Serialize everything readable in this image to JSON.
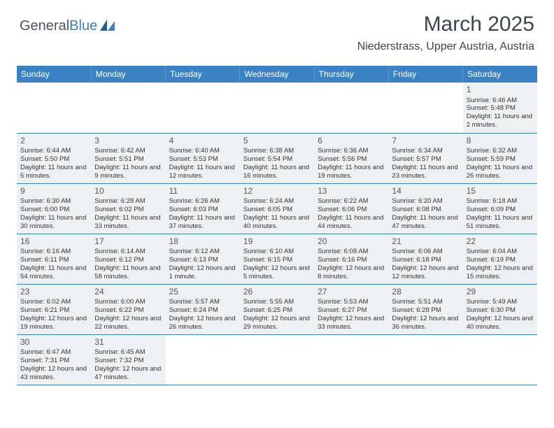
{
  "logo": {
    "textLeft": "General",
    "textRight": "Blue",
    "iconColor": "#3b82c4"
  },
  "title": "March 2025",
  "location": "Niederstrass, Upper Austria, Austria",
  "colors": {
    "headerBg": "#3b82c4",
    "cellBg": "#eef1f3",
    "borderColor": "#3b82c4",
    "textColor": "#333333"
  },
  "weekdays": [
    "Sunday",
    "Monday",
    "Tuesday",
    "Wednesday",
    "Thursday",
    "Friday",
    "Saturday"
  ],
  "weeks": [
    [
      null,
      null,
      null,
      null,
      null,
      null,
      {
        "n": "1",
        "sr": "Sunrise: 6:46 AM",
        "ss": "Sunset: 5:48 PM",
        "dl": "Daylight: 11 hours and 2 minutes."
      }
    ],
    [
      {
        "n": "2",
        "sr": "Sunrise: 6:44 AM",
        "ss": "Sunset: 5:50 PM",
        "dl": "Daylight: 11 hours and 5 minutes."
      },
      {
        "n": "3",
        "sr": "Sunrise: 6:42 AM",
        "ss": "Sunset: 5:51 PM",
        "dl": "Daylight: 11 hours and 9 minutes."
      },
      {
        "n": "4",
        "sr": "Sunrise: 6:40 AM",
        "ss": "Sunset: 5:53 PM",
        "dl": "Daylight: 11 hours and 12 minutes."
      },
      {
        "n": "5",
        "sr": "Sunrise: 6:38 AM",
        "ss": "Sunset: 5:54 PM",
        "dl": "Daylight: 11 hours and 16 minutes."
      },
      {
        "n": "6",
        "sr": "Sunrise: 6:36 AM",
        "ss": "Sunset: 5:56 PM",
        "dl": "Daylight: 11 hours and 19 minutes."
      },
      {
        "n": "7",
        "sr": "Sunrise: 6:34 AM",
        "ss": "Sunset: 5:57 PM",
        "dl": "Daylight: 11 hours and 23 minutes."
      },
      {
        "n": "8",
        "sr": "Sunrise: 6:32 AM",
        "ss": "Sunset: 5:59 PM",
        "dl": "Daylight: 11 hours and 26 minutes."
      }
    ],
    [
      {
        "n": "9",
        "sr": "Sunrise: 6:30 AM",
        "ss": "Sunset: 6:00 PM",
        "dl": "Daylight: 11 hours and 30 minutes."
      },
      {
        "n": "10",
        "sr": "Sunrise: 6:28 AM",
        "ss": "Sunset: 6:02 PM",
        "dl": "Daylight: 11 hours and 33 minutes."
      },
      {
        "n": "11",
        "sr": "Sunrise: 6:26 AM",
        "ss": "Sunset: 6:03 PM",
        "dl": "Daylight: 11 hours and 37 minutes."
      },
      {
        "n": "12",
        "sr": "Sunrise: 6:24 AM",
        "ss": "Sunset: 6:05 PM",
        "dl": "Daylight: 11 hours and 40 minutes."
      },
      {
        "n": "13",
        "sr": "Sunrise: 6:22 AM",
        "ss": "Sunset: 6:06 PM",
        "dl": "Daylight: 11 hours and 44 minutes."
      },
      {
        "n": "14",
        "sr": "Sunrise: 6:20 AM",
        "ss": "Sunset: 6:08 PM",
        "dl": "Daylight: 11 hours and 47 minutes."
      },
      {
        "n": "15",
        "sr": "Sunrise: 6:18 AM",
        "ss": "Sunset: 6:09 PM",
        "dl": "Daylight: 11 hours and 51 minutes."
      }
    ],
    [
      {
        "n": "16",
        "sr": "Sunrise: 6:16 AM",
        "ss": "Sunset: 6:11 PM",
        "dl": "Daylight: 11 hours and 54 minutes."
      },
      {
        "n": "17",
        "sr": "Sunrise: 6:14 AM",
        "ss": "Sunset: 6:12 PM",
        "dl": "Daylight: 11 hours and 58 minutes."
      },
      {
        "n": "18",
        "sr": "Sunrise: 6:12 AM",
        "ss": "Sunset: 6:13 PM",
        "dl": "Daylight: 12 hours and 1 minute."
      },
      {
        "n": "19",
        "sr": "Sunrise: 6:10 AM",
        "ss": "Sunset: 6:15 PM",
        "dl": "Daylight: 12 hours and 5 minutes."
      },
      {
        "n": "20",
        "sr": "Sunrise: 6:08 AM",
        "ss": "Sunset: 6:16 PM",
        "dl": "Daylight: 12 hours and 8 minutes."
      },
      {
        "n": "21",
        "sr": "Sunrise: 6:06 AM",
        "ss": "Sunset: 6:18 PM",
        "dl": "Daylight: 12 hours and 12 minutes."
      },
      {
        "n": "22",
        "sr": "Sunrise: 6:04 AM",
        "ss": "Sunset: 6:19 PM",
        "dl": "Daylight: 12 hours and 15 minutes."
      }
    ],
    [
      {
        "n": "23",
        "sr": "Sunrise: 6:02 AM",
        "ss": "Sunset: 6:21 PM",
        "dl": "Daylight: 12 hours and 19 minutes."
      },
      {
        "n": "24",
        "sr": "Sunrise: 6:00 AM",
        "ss": "Sunset: 6:22 PM",
        "dl": "Daylight: 12 hours and 22 minutes."
      },
      {
        "n": "25",
        "sr": "Sunrise: 5:57 AM",
        "ss": "Sunset: 6:24 PM",
        "dl": "Daylight: 12 hours and 26 minutes."
      },
      {
        "n": "26",
        "sr": "Sunrise: 5:55 AM",
        "ss": "Sunset: 6:25 PM",
        "dl": "Daylight: 12 hours and 29 minutes."
      },
      {
        "n": "27",
        "sr": "Sunrise: 5:53 AM",
        "ss": "Sunset: 6:27 PM",
        "dl": "Daylight: 12 hours and 33 minutes."
      },
      {
        "n": "28",
        "sr": "Sunrise: 5:51 AM",
        "ss": "Sunset: 6:28 PM",
        "dl": "Daylight: 12 hours and 36 minutes."
      },
      {
        "n": "29",
        "sr": "Sunrise: 5:49 AM",
        "ss": "Sunset: 6:30 PM",
        "dl": "Daylight: 12 hours and 40 minutes."
      }
    ],
    [
      {
        "n": "30",
        "sr": "Sunrise: 6:47 AM",
        "ss": "Sunset: 7:31 PM",
        "dl": "Daylight: 12 hours and 43 minutes."
      },
      {
        "n": "31",
        "sr": "Sunrise: 6:45 AM",
        "ss": "Sunset: 7:32 PM",
        "dl": "Daylight: 12 hours and 47 minutes."
      },
      null,
      null,
      null,
      null,
      null
    ]
  ]
}
